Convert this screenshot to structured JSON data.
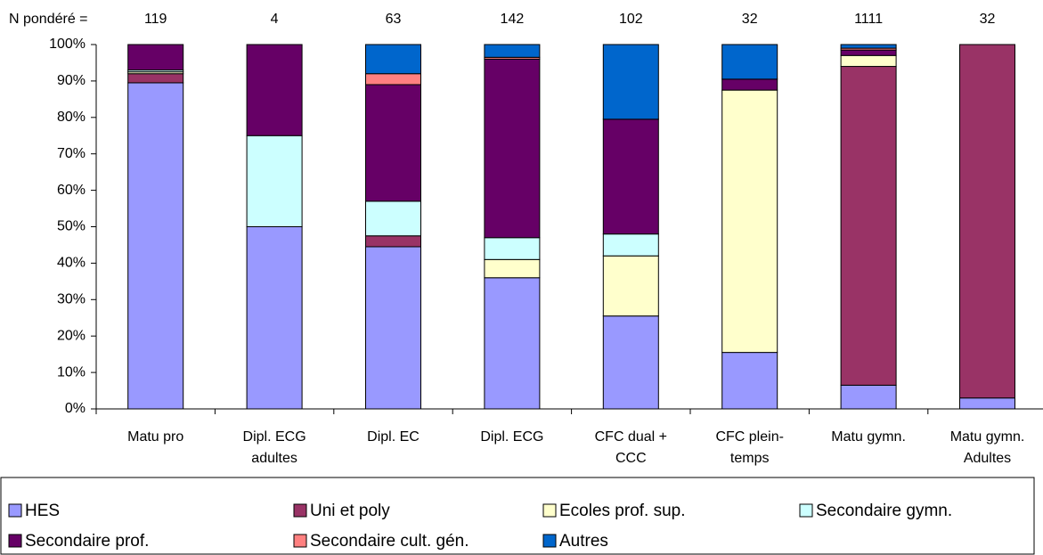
{
  "chart_data": {
    "type": "stacked_bar",
    "n_label": "N pondéré =",
    "n_values": [
      119,
      4,
      63,
      142,
      102,
      32,
      1111,
      32
    ],
    "categories": [
      "Matu pro",
      "Dipl. ECG adultes",
      "Dipl. EC",
      "Dipl. ECG",
      "CFC dual + CCC",
      "CFC plein-temps",
      "Matu gymn.",
      "Matu gymn. Adultes"
    ],
    "series": [
      {
        "name": "HES",
        "color": "#9999ff",
        "values": [
          89.5,
          50,
          44.5,
          36,
          25.5,
          15.5,
          6.5,
          3
        ]
      },
      {
        "name": "Uni et poly",
        "color": "#993366",
        "values": [
          2.5,
          0,
          3,
          0,
          0,
          0,
          87.5,
          97
        ]
      },
      {
        "name": "Ecoles prof. sup.",
        "color": "#ffffcc",
        "values": [
          0.5,
          0,
          0,
          5,
          16.5,
          72,
          3,
          0
        ]
      },
      {
        "name": "Secondaire gymn.",
        "color": "#ccffff",
        "values": [
          0.5,
          25,
          9.5,
          6,
          6,
          0,
          0,
          0
        ]
      },
      {
        "name": "Secondaire prof.",
        "color": "#660066",
        "values": [
          7,
          25,
          32,
          49,
          31.5,
          3,
          1.5,
          0
        ]
      },
      {
        "name": "Secondaire cult. gén.",
        "color": "#ff8080",
        "values": [
          0,
          0,
          3,
          0.5,
          0,
          0,
          0.5,
          0
        ]
      },
      {
        "name": "Autres",
        "color": "#0066cc",
        "values": [
          0,
          0,
          8,
          3.5,
          20.5,
          9.5,
          1,
          0
        ]
      }
    ],
    "ylim": [
      0,
      100
    ],
    "yticks": [
      {
        "value": 0,
        "label": "0%"
      },
      {
        "value": 10,
        "label": "10%"
      },
      {
        "value": 20,
        "label": "20%"
      },
      {
        "value": 30,
        "label": "30%"
      },
      {
        "value": 40,
        "label": "40%"
      },
      {
        "value": 50,
        "label": "50%"
      },
      {
        "value": 60,
        "label": "60%"
      },
      {
        "value": 70,
        "label": "70%"
      },
      {
        "value": 80,
        "label": "80%"
      },
      {
        "value": 90,
        "label": "90%"
      },
      {
        "value": 100,
        "label": "100%"
      }
    ],
    "grid": false
  }
}
